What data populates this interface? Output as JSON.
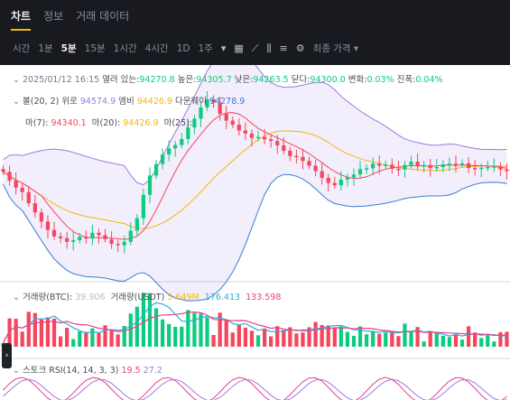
{
  "tabs": [
    {
      "label": "차트",
      "active": true
    },
    {
      "label": "정보",
      "active": false
    },
    {
      "label": "거래 데이터",
      "active": false
    }
  ],
  "toolbar": {
    "intervals": [
      "시간",
      "1분",
      "5분",
      "15분",
      "1시간",
      "4시간",
      "1D",
      "1주"
    ],
    "selected_interval": "5분",
    "icons": [
      "chevron-down-icon",
      "calendar-icon",
      "drawing-icon",
      "candles-icon",
      "indicators-icon",
      "settings-icon"
    ],
    "price_type": "최종 가격"
  },
  "ohlc": {
    "date": "2025/01/12 16:15",
    "open_label": "열려 있는:",
    "open": "94270.8",
    "high_label": "높은:",
    "high": "94305.7",
    "low_label": "낮은:",
    "low": "94263.5",
    "close_label": "닫다:",
    "close": "94300.0",
    "change_label": "변화:",
    "change": "0.03%",
    "amp_label": "진폭:",
    "amp": "0.04%"
  },
  "boll": {
    "label": "볼(20, 2)",
    "up_label": "위로",
    "up": "94574.9",
    "mid_label": "엠비",
    "mid": "94426.9",
    "dn_label": "다운웨이",
    "dn": "94278.9"
  },
  "ma": {
    "ma7_label": "마(7):",
    "ma7": "94340.1",
    "ma20_label": "마(20):",
    "ma20": "94426.9",
    "ma25_label": "마(25):",
    "ma25": ""
  },
  "volume": {
    "btc_label": "거래량(BTC):",
    "btc": "39.906",
    "usdt_label": "거래량(USDT)",
    "usdt": "5.649M",
    "v1": "176.413",
    "v2": "133.598"
  },
  "stoch": {
    "label": "스토크 RSI(14, 14, 3, 3)",
    "k": "19.5",
    "d": "27.2"
  },
  "colors": {
    "up": "#0ecb81",
    "down": "#f6465d",
    "boll_band": "#9b7be0",
    "ma7": "#f6465d",
    "ma20": "#f0b90b",
    "ma25": "#3a7bd5"
  },
  "chart_data": {
    "type": "candlestick",
    "close": [
      94478,
      94452,
      94431,
      94418,
      94385,
      94358,
      94331,
      94306,
      94287,
      94282,
      94271,
      94276,
      94286,
      94281,
      94298,
      94291,
      94279,
      94265,
      94261,
      94271,
      94304,
      94341,
      94410,
      94467,
      94501,
      94529,
      94547,
      94557,
      94575,
      94609,
      94635,
      94668,
      94692,
      94682,
      94649,
      94629,
      94617,
      94600,
      94591,
      94578,
      94581,
      94574,
      94569,
      94556,
      94540,
      94525,
      94522,
      94510,
      94496,
      94480,
      94460,
      94445,
      94438,
      94455,
      94461,
      94470,
      94486,
      94488,
      94502,
      94496,
      94499,
      94487,
      94485,
      94498,
      94508,
      94496,
      94498,
      94489,
      94492,
      94500,
      94502,
      94501,
      94503,
      94489,
      94487,
      94490,
      94492,
      94494,
      94485,
      94480
    ],
    "price_range": [
      94180,
      94740
    ]
  }
}
